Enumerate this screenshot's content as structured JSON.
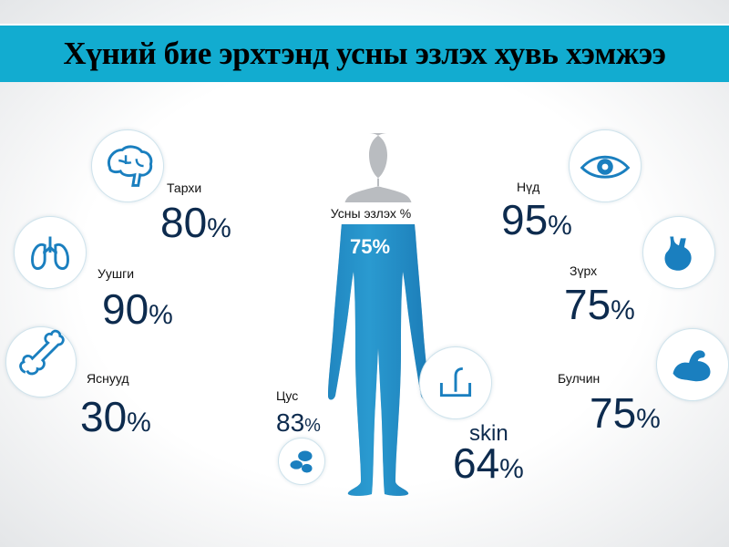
{
  "title": "Хүний бие эрхтэнд усны эзлэх хувь хэмжээ",
  "accent": "#12acd0",
  "body": {
    "label": "Усны эзлэх %",
    "value": "75%",
    "fill_percent": 75
  },
  "organs": [
    {
      "name": "Тархи",
      "value": "80",
      "icon": "brain-icon"
    },
    {
      "name": "Уушги",
      "value": "90",
      "icon": "lungs-icon"
    },
    {
      "name": "Яснууд",
      "value": "30",
      "icon": "bone-icon"
    },
    {
      "name": "Цус",
      "value": "83",
      "icon": "blood-cells-icon"
    },
    {
      "name": "Нүд",
      "value": "95",
      "icon": "eye-icon"
    },
    {
      "name": "Зүрх",
      "value": "75",
      "icon": "heart-icon"
    },
    {
      "name": "Булчин",
      "value": "75",
      "icon": "muscle-icon"
    },
    {
      "name": "skin",
      "value": "64",
      "icon": "skin-icon"
    }
  ],
  "percent_sign": "%"
}
